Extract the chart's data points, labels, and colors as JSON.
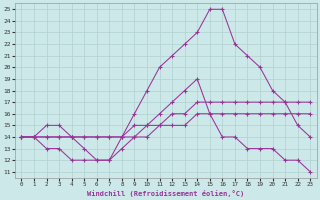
{
  "xlabel": "Windchill (Refroidissement éolien,°C)",
  "bg_color": "#cce8e8",
  "grid_color": "#b0d0d0",
  "line_color": "#993399",
  "xlim": [
    -0.5,
    23.5
  ],
  "ylim": [
    10.5,
    25.5
  ],
  "xticks": [
    0,
    1,
    2,
    3,
    4,
    5,
    6,
    7,
    8,
    9,
    10,
    11,
    12,
    13,
    14,
    15,
    16,
    17,
    18,
    19,
    20,
    21,
    22,
    23
  ],
  "yticks": [
    11,
    12,
    13,
    14,
    15,
    16,
    17,
    18,
    19,
    20,
    21,
    22,
    23,
    24,
    25
  ],
  "curves": [
    {
      "x": [
        0,
        1,
        2,
        3,
        4,
        5,
        6,
        7,
        8,
        9,
        10,
        11,
        12,
        13,
        14,
        15,
        16,
        17,
        18,
        19,
        20,
        21,
        22,
        23
      ],
      "y": [
        14,
        14,
        15,
        15,
        14,
        13,
        12,
        12,
        14,
        16,
        18,
        20,
        21,
        22,
        23,
        25,
        25,
        22,
        21,
        20,
        18,
        17,
        15,
        14
      ]
    },
    {
      "x": [
        0,
        1,
        2,
        3,
        4,
        5,
        6,
        7,
        8,
        9,
        10,
        11,
        12,
        13,
        14,
        15,
        16,
        17,
        18,
        19,
        20,
        21,
        22,
        23
      ],
      "y": [
        14,
        14,
        13,
        13,
        12,
        12,
        12,
        12,
        13,
        14,
        15,
        16,
        17,
        18,
        19,
        16,
        14,
        14,
        13,
        13,
        13,
        12,
        12,
        11
      ]
    },
    {
      "x": [
        0,
        1,
        2,
        3,
        4,
        5,
        6,
        7,
        8,
        9,
        10,
        11,
        12,
        13,
        14,
        15,
        16,
        17,
        18,
        19,
        20,
        21,
        22,
        23
      ],
      "y": [
        14,
        14,
        14,
        14,
        14,
        14,
        14,
        14,
        14,
        15,
        15,
        15,
        16,
        16,
        17,
        17,
        17,
        17,
        17,
        17,
        17,
        17,
        17,
        17
      ]
    },
    {
      "x": [
        0,
        1,
        2,
        3,
        4,
        5,
        6,
        7,
        8,
        9,
        10,
        11,
        12,
        13,
        14,
        15,
        16,
        17,
        18,
        19,
        20,
        21,
        22,
        23
      ],
      "y": [
        14,
        14,
        14,
        14,
        14,
        14,
        14,
        14,
        14,
        14,
        14,
        15,
        15,
        15,
        16,
        16,
        16,
        16,
        16,
        16,
        16,
        16,
        16,
        16
      ]
    }
  ]
}
